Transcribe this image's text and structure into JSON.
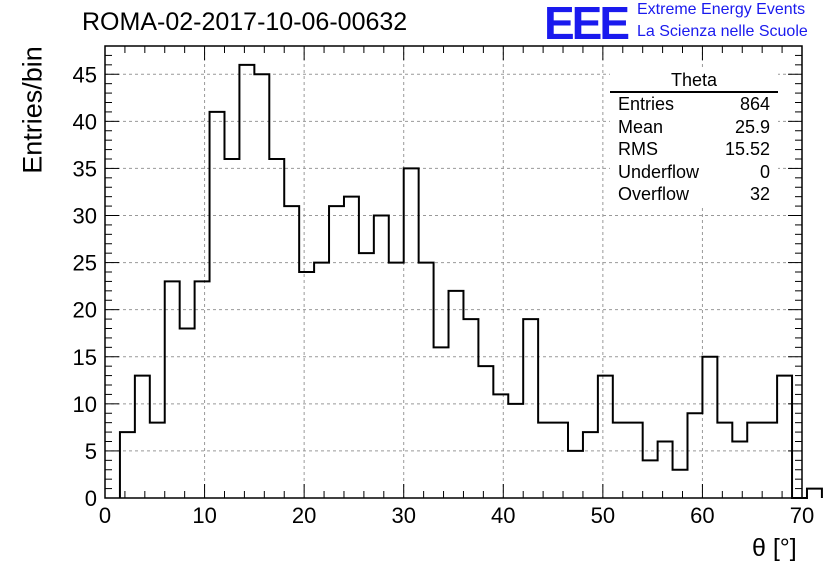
{
  "header": {
    "run_title": "ROMA-02-2017-10-06-00632",
    "logo_text": "EEE",
    "logo_line1": "Extreme Energy Events",
    "logo_line2": "La Scienza nelle Scuole",
    "logo_color": "#1a1aee"
  },
  "stats_box": {
    "title": "Theta",
    "rows": [
      {
        "label": "Entries",
        "value": "864"
      },
      {
        "label": "Mean",
        "value": "25.9"
      },
      {
        "label": "RMS",
        "value": "15.52"
      },
      {
        "label": "Underflow",
        "value": "0"
      },
      {
        "label": "Overflow",
        "value": "32"
      }
    ]
  },
  "chart_data": {
    "type": "bar",
    "histogram": true,
    "xlabel": "θ [°]",
    "ylabel": "Entries/bin",
    "xlim": [
      0,
      70
    ],
    "ylim": [
      0,
      48
    ],
    "xticks": [
      0,
      10,
      20,
      30,
      40,
      50,
      60,
      70
    ],
    "yticks": [
      0,
      5,
      10,
      15,
      20,
      25,
      30,
      35,
      40,
      45
    ],
    "grid": true,
    "bin_width": 1.5,
    "bin_start": 1.5,
    "values": [
      7,
      13,
      8,
      23,
      18,
      23,
      41,
      36,
      46,
      45,
      36,
      31,
      24,
      25,
      31,
      32,
      26,
      30,
      25,
      35,
      25,
      16,
      22,
      19,
      14,
      11,
      10,
      19,
      8,
      8,
      5,
      7,
      13,
      8,
      8,
      4,
      6,
      3,
      9,
      15,
      8,
      6,
      8,
      8,
      13,
      0,
      1
    ]
  }
}
